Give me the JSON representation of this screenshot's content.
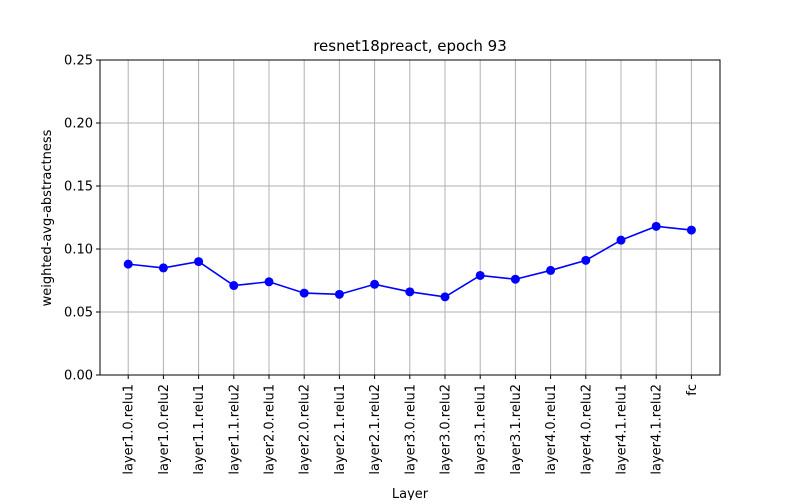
{
  "chart_data": {
    "type": "line",
    "title": "resnet18preact, epoch 93",
    "xlabel": "Layer",
    "ylabel": "weighted-avg-abstractness",
    "categories": [
      "layer1.0.relu1",
      "layer1.0.relu2",
      "layer1.1.relu1",
      "layer1.1.relu2",
      "layer2.0.relu1",
      "layer2.0.relu2",
      "layer2.1.relu1",
      "layer2.1.relu2",
      "layer3.0.relu1",
      "layer3.0.relu2",
      "layer3.1.relu1",
      "layer3.1.relu2",
      "layer4.0.relu1",
      "layer4.0.relu2",
      "layer4.1.relu1",
      "layer4.1.relu2",
      "fc"
    ],
    "values": [
      0.088,
      0.085,
      0.09,
      0.071,
      0.074,
      0.065,
      0.064,
      0.072,
      0.066,
      0.062,
      0.079,
      0.076,
      0.083,
      0.091,
      0.107,
      0.118,
      0.115
    ],
    "ylim": [
      0.0,
      0.25
    ],
    "yticks": [
      "0.00",
      "0.05",
      "0.10",
      "0.15",
      "0.20",
      "0.25"
    ],
    "grid": true,
    "line_color": "#0000ff",
    "marker_color": "#0000ff",
    "grid_color": "#b0b0b0"
  }
}
